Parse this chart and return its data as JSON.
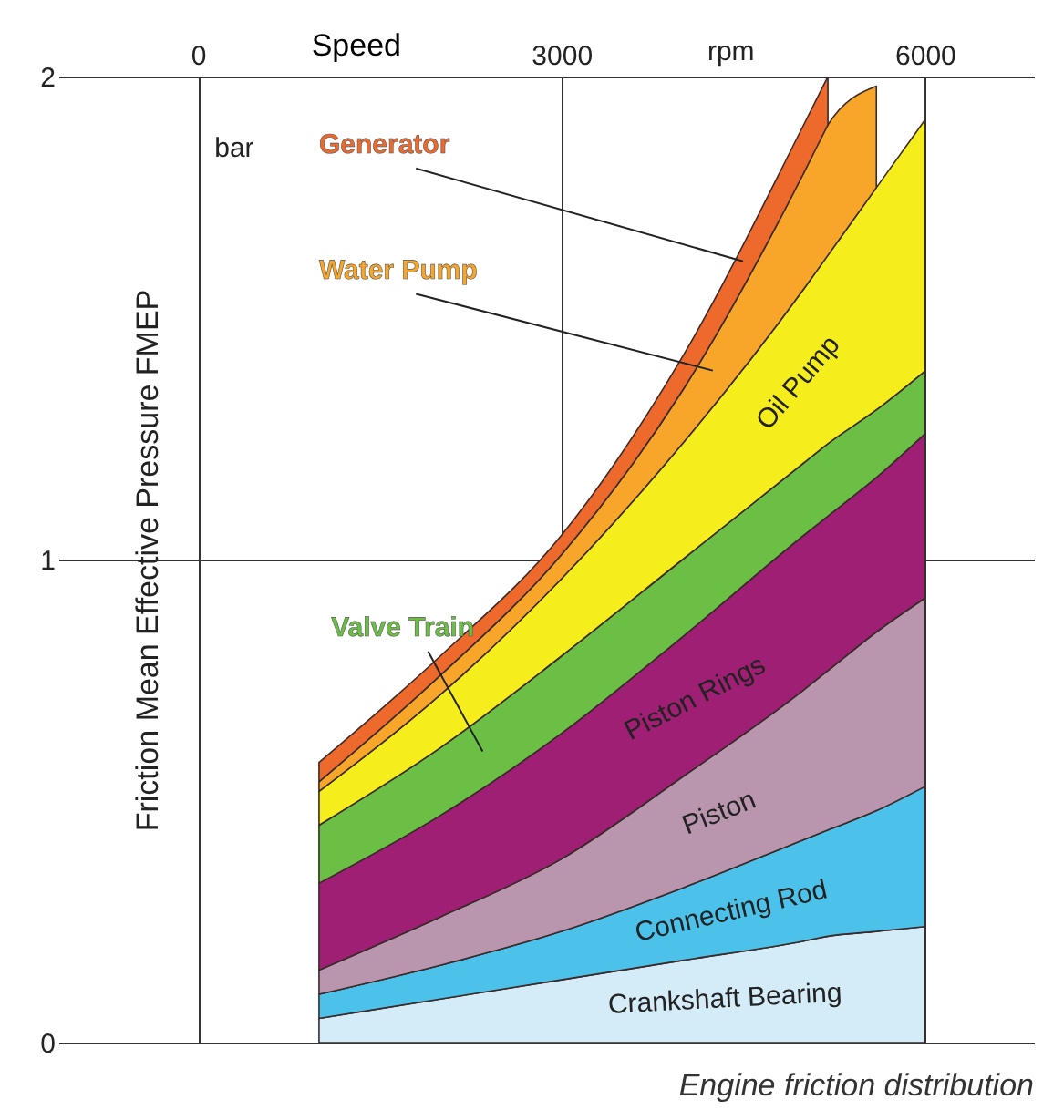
{
  "chart_data": {
    "type": "area",
    "stacked": true,
    "title": "Engine friction distribution",
    "xlabel": "Speed",
    "ylabel": "Friction Mean Effective Pressure FMEP",
    "annotations": [
      "rpm",
      "bar"
    ],
    "x": [
      1000,
      2000,
      3000,
      4000,
      5000,
      5200,
      5600,
      6000
    ],
    "series": [
      {
        "name": "Crankshaft Bearing",
        "color": "#d3ecf7",
        "values": [
          0.05,
          0.09,
          0.13,
          0.17,
          0.21,
          0.22,
          0.23,
          0.24
        ]
      },
      {
        "name": "Connecting Rod",
        "color": "#4cc2ea",
        "values": [
          0.05,
          0.07,
          0.1,
          0.15,
          0.21,
          0.22,
          0.25,
          0.29
        ]
      },
      {
        "name": "Piston",
        "color": "#b995ae",
        "values": [
          0.05,
          0.1,
          0.15,
          0.23,
          0.31,
          0.33,
          0.37,
          0.39
        ]
      },
      {
        "name": "Piston Rings",
        "color": "#9e1f73",
        "values": [
          0.18,
          0.21,
          0.26,
          0.29,
          0.32,
          0.32,
          0.32,
          0.34
        ]
      },
      {
        "name": "Valve Train",
        "color": "#6cbf45",
        "values": [
          0.12,
          0.14,
          0.16,
          0.16,
          0.15,
          0.15,
          0.14,
          0.13
        ]
      },
      {
        "name": "Oil Pump",
        "color": "#f6ee1c",
        "values": [
          0.07,
          0.11,
          0.16,
          0.24,
          0.36,
          0.39,
          0.46,
          0.52
        ]
      },
      {
        "name": "Water Pump",
        "color": "#f7a62a",
        "values": [
          0.02,
          0.04,
          0.05,
          0.11,
          0.24,
          0.27,
          0.21,
          null
        ]
      },
      {
        "name": "Generator",
        "color": "#ee6a2c",
        "values": [
          0.04,
          0.04,
          0.04,
          0.07,
          0.1,
          0.1,
          null,
          null
        ]
      }
    ],
    "xlim": [
      -700,
      6900
    ],
    "xticks": [
      0,
      3000,
      6000
    ],
    "ylim": [
      0,
      2
    ],
    "yticks": [
      0,
      1,
      2
    ],
    "grid": true
  }
}
